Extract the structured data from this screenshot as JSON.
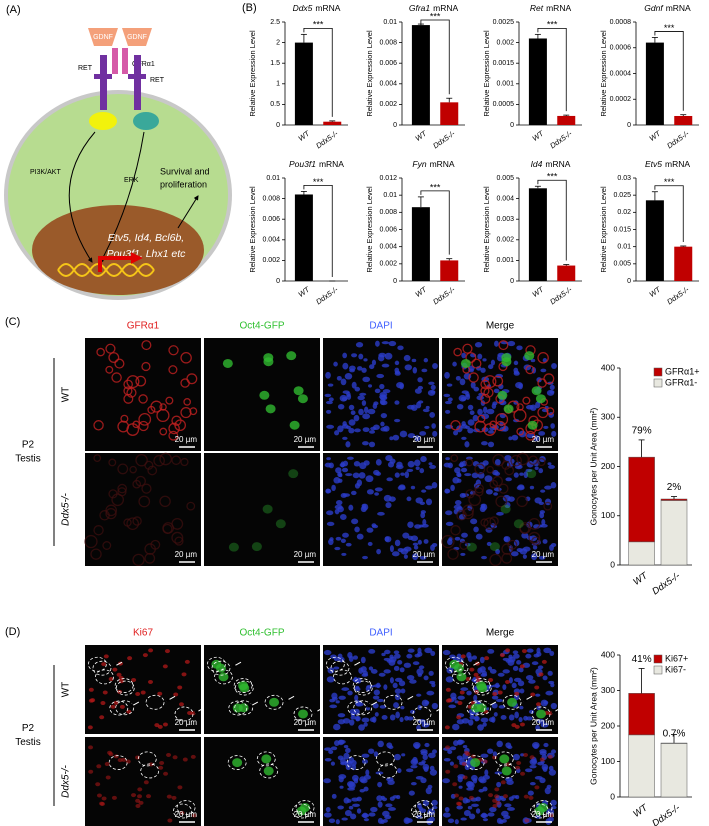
{
  "panel_a": {
    "label": "(A)",
    "ligands": [
      "GDNF",
      "GDNF"
    ],
    "coreceptor": "GFRα1",
    "receptors": [
      "RET",
      "RET"
    ],
    "pathways": [
      "PI3K/AKT",
      "ERK"
    ],
    "outcome": [
      "Survival and",
      "proliferation"
    ],
    "genes": [
      "Etv5, Id4, Bcl6b,",
      "Pou3f1, Lhx1 etc"
    ]
  },
  "panel_b": {
    "label": "(B)",
    "chart_data": [
      {
        "type": "bar",
        "title": [
          "Ddx5",
          "mRNA"
        ],
        "ylabel": "Relative Expression Level",
        "categories": [
          "WT",
          "Ddx5-/-"
        ],
        "values": [
          2.0,
          0.08
        ],
        "errors": [
          0.2,
          0.02
        ],
        "colors": [
          "#000000",
          "#c00000"
        ],
        "significance": "***",
        "ylim": [
          0,
          2.5
        ],
        "yticks": [
          0,
          0.5,
          1,
          1.5,
          2,
          2.5
        ]
      },
      {
        "type": "bar",
        "title": [
          "Gfra1",
          "mRNA"
        ],
        "ylabel": "Relative Expression Level",
        "categories": [
          "WT",
          "Ddx5-/-"
        ],
        "values": [
          0.0097,
          0.0022
        ],
        "errors": [
          0.0001,
          0.0004
        ],
        "colors": [
          "#000000",
          "#c00000"
        ],
        "significance": "***",
        "ylim": [
          0,
          0.01
        ],
        "yticks": [
          0,
          0.002,
          0.004,
          0.006,
          0.008,
          0.01
        ]
      },
      {
        "type": "bar",
        "title": [
          "Ret",
          "mRNA"
        ],
        "ylabel": "Relative Expression Level",
        "categories": [
          "WT",
          "Ddx5-/-"
        ],
        "values": [
          0.0021,
          0.00022
        ],
        "errors": [
          0.0001,
          2e-05
        ],
        "colors": [
          "#000000",
          "#c00000"
        ],
        "significance": "***",
        "ylim": [
          0,
          0.0025
        ],
        "yticks": [
          0,
          0.0005,
          0.001,
          0.0015,
          0.002,
          0.0025
        ]
      },
      {
        "type": "bar",
        "title": [
          "Gdnf",
          "mRNA"
        ],
        "ylabel": "Relative Expression Level",
        "categories": [
          "WT",
          "Ddx5-/-"
        ],
        "values": [
          0.00064,
          7e-05
        ],
        "errors": [
          4e-05,
          1e-05
        ],
        "colors": [
          "#000000",
          "#c00000"
        ],
        "significance": "***",
        "ylim": [
          0,
          0.0008
        ],
        "yticks": [
          0,
          0.0002,
          0.0004,
          0.0006,
          0.0008
        ]
      },
      {
        "type": "bar",
        "title": [
          "Pou3f1",
          "mRNA"
        ],
        "ylabel": "Relative Expression Level",
        "categories": [
          "WT",
          "Ddx5-/-"
        ],
        "values": [
          0.0084,
          0
        ],
        "errors": [
          0.0003,
          0
        ],
        "colors": [
          "#000000",
          "#c00000"
        ],
        "significance": "***",
        "ylim": [
          0,
          0.01
        ],
        "yticks": [
          0,
          0.002,
          0.004,
          0.006,
          0.008,
          0.01
        ]
      },
      {
        "type": "bar",
        "title": [
          "Fyn",
          "mRNA"
        ],
        "ylabel": "Relative Expression Level",
        "categories": [
          "WT",
          "Ddx5-/-"
        ],
        "values": [
          0.0086,
          0.0024
        ],
        "errors": [
          0.0012,
          0.0002
        ],
        "colors": [
          "#000000",
          "#c00000"
        ],
        "significance": "***",
        "ylim": [
          0,
          0.012
        ],
        "yticks": [
          0,
          0.002,
          0.004,
          0.006,
          0.008,
          0.01,
          0.012
        ]
      },
      {
        "type": "bar",
        "title": [
          "Id4",
          "mRNA"
        ],
        "ylabel": "Relative Expression Level",
        "categories": [
          "WT",
          "Ddx5-/-"
        ],
        "values": [
          0.0045,
          0.00075
        ],
        "errors": [
          0.0001,
          5e-05
        ],
        "colors": [
          "#000000",
          "#c00000"
        ],
        "significance": "***",
        "ylim": [
          0,
          0.005
        ],
        "yticks": [
          0,
          0.001,
          0.002,
          0.003,
          0.004,
          0.005
        ]
      },
      {
        "type": "bar",
        "title": [
          "Etv5",
          "mRNA"
        ],
        "ylabel": "Relative Expression Level",
        "categories": [
          "WT",
          "Ddx5-/-"
        ],
        "values": [
          0.0235,
          0.01
        ],
        "errors": [
          0.0025,
          0.0002
        ],
        "colors": [
          "#000000",
          "#c00000"
        ],
        "significance": "***",
        "ylim": [
          0,
          0.03
        ],
        "yticks": [
          0,
          0.005,
          0.01,
          0.015,
          0.02,
          0.025,
          0.03
        ]
      }
    ]
  },
  "panel_c": {
    "label": "(C)",
    "columns": [
      "GFRα1",
      "Oct4-GFP",
      "DAPI",
      "Merge"
    ],
    "rows": [
      "WT",
      "Ddx5-/-"
    ],
    "group": [
      "P2",
      "Testis"
    ],
    "scale_bar": "20 µm",
    "chart_data": {
      "type": "stacked_bar",
      "ylabel": "Gonocytes per Unit Area (mm²)",
      "categories": [
        "WT",
        "Ddx5-/-"
      ],
      "series": [
        {
          "name": "GFRα1-",
          "color": "#e8e8e0",
          "values": [
            47,
            131
          ],
          "errors": [
            25,
            null
          ]
        },
        {
          "name": "GFRα1+",
          "color": "#c00000",
          "values": [
            172,
            3
          ],
          "errors": [
            35,
            5
          ]
        }
      ],
      "annotations": [
        "79%",
        "2%"
      ],
      "ylim": [
        0,
        400
      ],
      "yticks": [
        0,
        100,
        200,
        300,
        400
      ],
      "legend": "upper right"
    }
  },
  "panel_d": {
    "label": "(D)",
    "columns": [
      "Ki67",
      "Oct4-GFP",
      "DAPI",
      "Merge"
    ],
    "rows": [
      "WT",
      "Ddx5-/-"
    ],
    "group": [
      "P2",
      "Testis"
    ],
    "scale_bar": "20 µm",
    "chart_data": {
      "type": "stacked_bar",
      "ylabel": "Gonocytes per Unit Area (mm²)",
      "categories": [
        "WT",
        "Ddx5-/-"
      ],
      "series": [
        {
          "name": "Ki67-",
          "color": "#e8e8e0",
          "values": [
            175,
            151
          ],
          "errors": [
            55,
            25
          ]
        },
        {
          "name": "Ki67+",
          "color": "#c00000",
          "values": [
            117,
            1
          ],
          "errors": [
            70,
            null
          ]
        }
      ],
      "annotations": [
        "41%",
        "0.7%"
      ],
      "ylim": [
        0,
        400
      ],
      "yticks": [
        0,
        100,
        200,
        300,
        400
      ],
      "legend": "upper right"
    }
  }
}
